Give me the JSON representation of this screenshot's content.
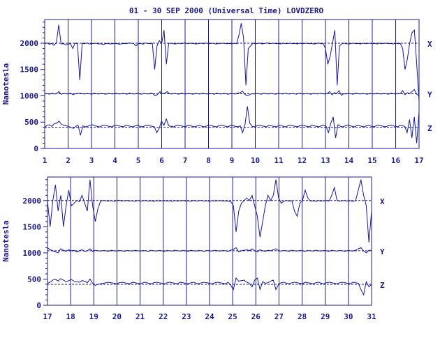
{
  "title": "01 - 30 SEP 2000 (Universal Time) LOVDZERO",
  "colors": {
    "ink": "#1a1a8c",
    "trace": "#1616a0",
    "background": "#ffffff"
  },
  "chart_data": [
    {
      "type": "line",
      "panel": "top",
      "ylabel": "Nanotesla",
      "ylim": [
        0,
        2450
      ],
      "yticks": [
        0,
        500,
        1000,
        1500,
        2000
      ],
      "xlim": [
        1,
        17
      ],
      "xticks": [
        "1",
        "2",
        "3",
        "4",
        "5",
        "6",
        "7",
        "8",
        "9",
        "10",
        "11",
        "12",
        "13",
        "14",
        "15",
        "16",
        "17"
      ],
      "baselines": [
        2000,
        1040,
        400
      ],
      "series": [
        {
          "name": "X",
          "baseline": 2000,
          "values": [
            1990,
            2005,
            1980,
            1995,
            1960,
            2010,
            2350,
            1985,
            1990,
            1970,
            1980,
            1995,
            1900,
            2000,
            1990,
            1300,
            1995,
            1990,
            2005,
            1985,
            1990,
            1995,
            2000,
            1985,
            1990,
            1975,
            1990,
            1995,
            1985,
            1990,
            1995,
            1990,
            1980,
            1990,
            1995,
            1990,
            2005,
            2000,
            1995,
            1950,
            1990,
            1995,
            1980,
            2005,
            1995,
            1990,
            2000,
            1500,
            1950,
            2050,
            1990,
            2250,
            1600,
            1995,
            2000,
            1990,
            1985,
            2000,
            1990,
            1995,
            2005,
            1990,
            2000,
            1995,
            1990,
            1985,
            1995,
            2000,
            1990,
            2005,
            1990,
            1995,
            2000,
            1985,
            1990,
            1995,
            2000,
            1995,
            1990,
            1995,
            1985,
            2000,
            1990,
            2150,
            2380,
            2100,
            1200,
            1900,
            1950,
            2000,
            1990,
            1995,
            2000,
            1985,
            1995,
            2005,
            1990,
            1995,
            2000,
            1990,
            1995,
            1985,
            2000,
            1990,
            1995,
            2000,
            1990,
            1995,
            1985,
            2000,
            1990,
            1995,
            2000,
            1990,
            1995,
            1985,
            1990,
            2005,
            1990,
            1995,
            1900,
            1600,
            1750,
            2000,
            2250,
            1200,
            1950,
            1990,
            2000,
            1990,
            1985,
            1995,
            2000,
            1990,
            1995,
            1985,
            2000,
            1990,
            1995,
            2000,
            1990,
            1995,
            1985,
            2000,
            1990,
            1995,
            2000,
            1990,
            1995,
            1985,
            2000,
            1990,
            1995,
            1900,
            1500,
            1700,
            2000,
            2200,
            2250,
            1600,
            900
          ]
        },
        {
          "name": "Y",
          "baseline": 1040,
          "values": [
            1040,
            1045,
            1030,
            1050,
            1035,
            1040,
            1080,
            1030,
            1045,
            1040,
            1035,
            1050,
            1020,
            1040,
            1045,
            1050,
            1040,
            1035,
            1045,
            1040,
            1030,
            1050,
            1040,
            1035,
            1045,
            1040,
            1030,
            1045,
            1040,
            1035,
            1050,
            1040,
            1035,
            1045,
            1040,
            1030,
            1050,
            1040,
            1035,
            1045,
            1040,
            1030,
            1045,
            1040,
            1035,
            1050,
            1040,
            1000,
            1030,
            1080,
            1040,
            1050,
            1080,
            1040,
            1035,
            1045,
            1040,
            1030,
            1050,
            1040,
            1035,
            1045,
            1040,
            1030,
            1045,
            1040,
            1035,
            1050,
            1040,
            1035,
            1045,
            1040,
            1030,
            1050,
            1040,
            1035,
            1045,
            1040,
            1030,
            1045,
            1040,
            1035,
            1050,
            1060,
            1090,
            1030,
            1000,
            1020,
            1040,
            1035,
            1045,
            1040,
            1030,
            1050,
            1040,
            1035,
            1045,
            1040,
            1030,
            1045,
            1040,
            1035,
            1050,
            1040,
            1035,
            1045,
            1040,
            1030,
            1050,
            1040,
            1035,
            1045,
            1040,
            1030,
            1045,
            1040,
            1035,
            1050,
            1040,
            1035,
            1045,
            1080,
            1020,
            1060,
            1040,
            1100,
            1010,
            1040,
            1035,
            1045,
            1040,
            1030,
            1050,
            1040,
            1035,
            1045,
            1040,
            1030,
            1045,
            1040,
            1035,
            1050,
            1040,
            1035,
            1045,
            1040,
            1030,
            1050,
            1040,
            1035,
            1045,
            1040,
            1100,
            1020,
            1060,
            1040,
            1080,
            1120,
            1030,
            1000
          ]
        },
        {
          "name": "Z",
          "baseline": 400,
          "values": [
            400,
            440,
            450,
            420,
            470,
            480,
            520,
            460,
            440,
            430,
            420,
            400,
            380,
            420,
            440,
            250,
            430,
            410,
            420,
            440,
            450,
            430,
            420,
            410,
            430,
            440,
            430,
            420,
            410,
            430,
            440,
            430,
            420,
            410,
            440,
            430,
            420,
            410,
            430,
            440,
            420,
            410,
            430,
            440,
            430,
            420,
            410,
            300,
            380,
            520,
            440,
            560,
            430,
            420,
            410,
            430,
            440,
            430,
            420,
            410,
            440,
            430,
            420,
            410,
            430,
            440,
            420,
            410,
            430,
            440,
            430,
            420,
            410,
            430,
            440,
            430,
            420,
            410,
            440,
            430,
            420,
            410,
            430,
            300,
            450,
            800,
            480,
            420,
            410,
            430,
            440,
            430,
            420,
            410,
            440,
            430,
            420,
            410,
            430,
            440,
            420,
            410,
            430,
            440,
            430,
            420,
            410,
            430,
            440,
            430,
            420,
            410,
            440,
            430,
            420,
            410,
            430,
            440,
            420,
            300,
            480,
            600,
            200,
            450,
            420,
            410,
            430,
            440,
            430,
            420,
            410,
            440,
            430,
            420,
            410,
            430,
            440,
            420,
            410,
            430,
            440,
            430,
            420,
            410,
            430,
            440,
            430,
            420,
            410,
            440,
            430,
            420,
            300,
            550,
            200,
            600,
            100,
            700
          ]
        }
      ]
    },
    {
      "type": "line",
      "panel": "bottom",
      "ylabel": "Nanotesla",
      "ylim": [
        0,
        2450
      ],
      "yticks": [
        0,
        500,
        1000,
        1500,
        2000
      ],
      "xlim": [
        17,
        31
      ],
      "xticks": [
        "17",
        "18",
        "19",
        "20",
        "21",
        "22",
        "23",
        "24",
        "25",
        "26",
        "27",
        "28",
        "29",
        "30",
        "31"
      ],
      "baselines": [
        2000,
        1040,
        400
      ],
      "series": [
        {
          "name": "X",
          "baseline": 2000,
          "values": [
            1990,
            1500,
            2000,
            2300,
            1800,
            2100,
            1500,
            1900,
            2200,
            1900,
            1950,
            2000,
            1980,
            2100,
            1950,
            1800,
            2400,
            1900,
            1600,
            1850,
            1990,
            2000,
            1995,
            1990,
            2000,
            1985,
            1995,
            2005,
            1990,
            1995,
            2000,
            1990,
            1995,
            1985,
            2000,
            1990,
            1995,
            2000,
            1990,
            1995,
            1985,
            2000,
            1990,
            1995,
            2000,
            1990,
            1995,
            1985,
            2000,
            1990,
            1995,
            2000,
            1990,
            1995,
            1985,
            2000,
            1990,
            1995,
            2000,
            1990,
            1995,
            1985,
            2000,
            1990,
            1995,
            2000,
            1990,
            1995,
            1985,
            1980,
            1900,
            1400,
            1800,
            1950,
            2000,
            2050,
            2000,
            2100,
            1900,
            1700,
            1300,
            1600,
            1900,
            2100,
            2000,
            2100,
            2400,
            2050,
            1950,
            1990,
            2000,
            1990,
            1995,
            1800,
            1700,
            1950,
            2000,
            2200,
            2050,
            1990,
            1995,
            1985,
            2000,
            1990,
            1995,
            2000,
            1990,
            2100,
            2250,
            2000,
            1990,
            1995,
            2000,
            1990,
            1995,
            1985,
            2000,
            2200,
            2400,
            2100,
            1900,
            1200,
            1800
          ]
        },
        {
          "name": "Y",
          "baseline": 1040,
          "values": [
            1100,
            1060,
            1040,
            1020,
            1000,
            1080,
            1050,
            1030,
            1060,
            1040,
            1050,
            1020,
            1040,
            1060,
            1030,
            1040,
            1080,
            1030,
            1050,
            1040,
            1035,
            1045,
            1040,
            1030,
            1050,
            1040,
            1035,
            1045,
            1040,
            1030,
            1045,
            1040,
            1035,
            1050,
            1040,
            1035,
            1045,
            1040,
            1030,
            1050,
            1040,
            1035,
            1045,
            1040,
            1030,
            1045,
            1040,
            1035,
            1050,
            1040,
            1035,
            1045,
            1040,
            1030,
            1050,
            1040,
            1035,
            1045,
            1040,
            1030,
            1045,
            1040,
            1035,
            1050,
            1040,
            1035,
            1045,
            1040,
            1030,
            1050,
            1070,
            1100,
            1020,
            1040,
            1050,
            1060,
            1040,
            1080,
            1040,
            1020,
            1060,
            1040,
            1030,
            1050,
            1040,
            1060,
            1080,
            1040,
            1035,
            1045,
            1040,
            1030,
            1050,
            1040,
            1035,
            1045,
            1040,
            1030,
            1045,
            1040,
            1035,
            1050,
            1040,
            1035,
            1045,
            1040,
            1030,
            1050,
            1040,
            1035,
            1045,
            1040,
            1030,
            1045,
            1040,
            1035,
            1050,
            1080,
            1100,
            1040,
            1000,
            1050,
            1040
          ]
        },
        {
          "name": "Z",
          "baseline": 400,
          "values": [
            420,
            440,
            480,
            500,
            460,
            510,
            480,
            450,
            470,
            490,
            460,
            450,
            440,
            470,
            460,
            430,
            500,
            420,
            380,
            400,
            410,
            420,
            430,
            440,
            430,
            420,
            410,
            430,
            440,
            430,
            420,
            410,
            440,
            430,
            420,
            410,
            430,
            440,
            420,
            410,
            430,
            440,
            430,
            420,
            410,
            430,
            440,
            430,
            420,
            410,
            440,
            430,
            420,
            410,
            430,
            440,
            420,
            410,
            430,
            440,
            430,
            420,
            410,
            430,
            440,
            430,
            420,
            410,
            440,
            380,
            300,
            520,
            460,
            470,
            480,
            440,
            420,
            350,
            480,
            520,
            300,
            450,
            420,
            430,
            460,
            480,
            300,
            400,
            430,
            440,
            420,
            410,
            430,
            440,
            430,
            420,
            410,
            440,
            430,
            420,
            410,
            430,
            440,
            420,
            410,
            430,
            440,
            430,
            420,
            410,
            430,
            440,
            430,
            420,
            410,
            440,
            430,
            420,
            300,
            200,
            450,
            350,
            400
          ]
        }
      ]
    }
  ]
}
